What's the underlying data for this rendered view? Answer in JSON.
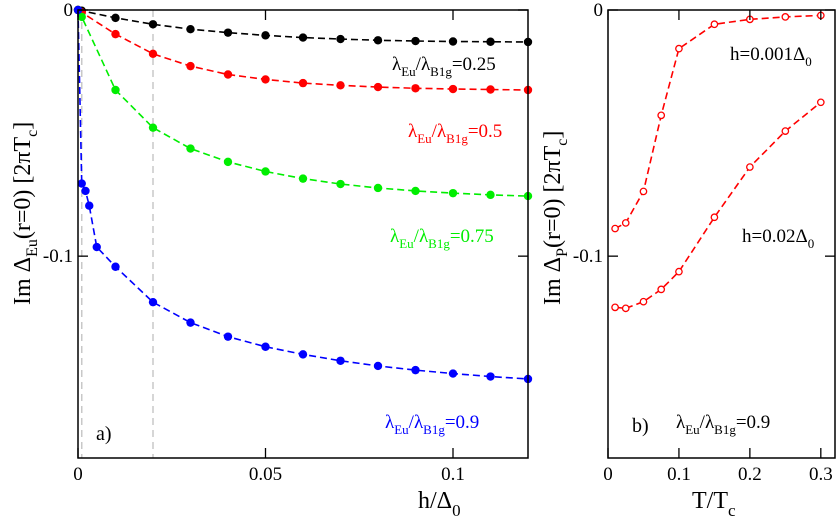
{
  "chart_data": [
    {
      "panel": "a)",
      "type": "line",
      "xlabel_main": "h/Δ",
      "xlabel_sub": "0",
      "ylabel_main": "Im Δ",
      "ylabel_sub": "Eu",
      "ylabel_rest": "(r=0) [2πT",
      "ylabel_sub2": "c",
      "ylabel_end": "]",
      "xlim": [
        0,
        0.12
      ],
      "ylim": [
        -0.182,
        0
      ],
      "xticks": [
        0,
        0.05,
        0.1
      ],
      "xtick_labels": [
        "0",
        "0.05",
        "0.1"
      ],
      "yticks": [
        0,
        -0.1
      ],
      "ytick_labels": [
        "0",
        "-0.1"
      ],
      "vlines": [
        0.001,
        0.02
      ],
      "series": [
        {
          "name": "λEu/λB1g=0.25",
          "label": {
            "lam1": "λ",
            "sub1": "Eu",
            "mid": "/λ",
            "sub2": "B1g",
            "val": "=0.25"
          },
          "color": "#000000",
          "x": [
            0,
            0.001,
            0.01,
            0.02,
            0.03,
            0.04,
            0.05,
            0.06,
            0.07,
            0.08,
            0.09,
            0.1,
            0.11,
            0.12
          ],
          "y": [
            0,
            -0.0003,
            -0.0032,
            -0.0058,
            -0.0078,
            -0.0092,
            -0.0103,
            -0.0112,
            -0.0118,
            -0.0123,
            -0.0126,
            -0.0128,
            -0.0129,
            -0.013
          ]
        },
        {
          "name": "λEu/λB1g=0.5",
          "label": {
            "lam1": "λ",
            "sub1": "Eu",
            "mid": "/λ",
            "sub2": "B1g",
            "val": "=0.5"
          },
          "color": "#ff0000",
          "x": [
            0,
            0.001,
            0.01,
            0.02,
            0.03,
            0.04,
            0.05,
            0.06,
            0.07,
            0.08,
            0.09,
            0.1,
            0.11,
            0.12
          ],
          "y": [
            0,
            -0.001,
            -0.0098,
            -0.0178,
            -0.0228,
            -0.0262,
            -0.0282,
            -0.0297,
            -0.0306,
            -0.0313,
            -0.0318,
            -0.0321,
            -0.0323,
            -0.0325
          ]
        },
        {
          "name": "λEu/λB1g=0.75",
          "label": {
            "lam1": "λ",
            "sub1": "Eu",
            "mid": "/λ",
            "sub2": "B1g",
            "val": "=0.75"
          },
          "color": "#00ee00",
          "x": [
            0,
            0.001,
            0.01,
            0.02,
            0.03,
            0.04,
            0.05,
            0.06,
            0.07,
            0.08,
            0.09,
            0.1,
            0.11,
            0.12
          ],
          "y": [
            0,
            -0.0028,
            -0.0325,
            -0.0478,
            -0.0563,
            -0.0617,
            -0.0656,
            -0.0685,
            -0.0707,
            -0.0723,
            -0.0735,
            -0.0744,
            -0.0751,
            -0.0756
          ]
        },
        {
          "name": "λEu/λB1g=0.9",
          "label": {
            "lam1": "λ",
            "sub1": "Eu",
            "mid": "/λ",
            "sub2": "B1g",
            "val": "=0.9"
          },
          "color": "#0000ff",
          "x": [
            0,
            0.001,
            0.002,
            0.003,
            0.005,
            0.01,
            0.02,
            0.03,
            0.04,
            0.05,
            0.06,
            0.07,
            0.08,
            0.09,
            0.1,
            0.11,
            0.12
          ],
          "y": [
            0,
            -0.0705,
            -0.0735,
            -0.0795,
            -0.0963,
            -0.1043,
            -0.1187,
            -0.127,
            -0.1327,
            -0.1368,
            -0.1399,
            -0.1425,
            -0.1446,
            -0.1463,
            -0.1477,
            -0.1489,
            -0.1499
          ]
        }
      ]
    },
    {
      "panel": "b)",
      "type": "line",
      "xlabel_main": "T/T",
      "xlabel_sub": "c",
      "ylabel_main": "Im Δ",
      "ylabel_sub": "P",
      "ylabel_rest": "(r=0) [2πT",
      "ylabel_sub2": "c",
      "ylabel_end": "]",
      "xlim": [
        0,
        0.32
      ],
      "ylim": [
        -0.182,
        0
      ],
      "xticks": [
        0,
        0.1,
        0.2,
        0.3
      ],
      "xtick_labels": [
        "0",
        "0.1",
        "0.2",
        "0.3"
      ],
      "yticks": [
        0,
        -0.1
      ],
      "ytick_labels": [
        "0",
        "-0.1"
      ],
      "annotation": {
        "lam1": "λ",
        "sub1": "Eu",
        "mid": "/λ",
        "sub2": "B1g",
        "val": "=0.9"
      },
      "series": [
        {
          "name": "h=0.001Δ0",
          "label": {
            "main": "h=0.001Δ",
            "sub": "0"
          },
          "color": "#ff0000",
          "x": [
            0.01,
            0.025,
            0.05,
            0.075,
            0.1,
            0.15,
            0.2,
            0.25,
            0.3
          ],
          "y": [
            -0.0888,
            -0.0865,
            -0.0737,
            -0.0428,
            -0.0157,
            -0.0058,
            -0.0038,
            -0.0028,
            -0.0022
          ]
        },
        {
          "name": "h=0.02Δ0",
          "label": {
            "main": "h=0.02Δ",
            "sub": "0"
          },
          "color": "#ff0000",
          "x": [
            0.01,
            0.025,
            0.05,
            0.075,
            0.1,
            0.15,
            0.2,
            0.25,
            0.3
          ],
          "y": [
            -0.1208,
            -0.1212,
            -0.1185,
            -0.1135,
            -0.1063,
            -0.0842,
            -0.0638,
            -0.0492,
            -0.0375
          ]
        }
      ]
    }
  ]
}
